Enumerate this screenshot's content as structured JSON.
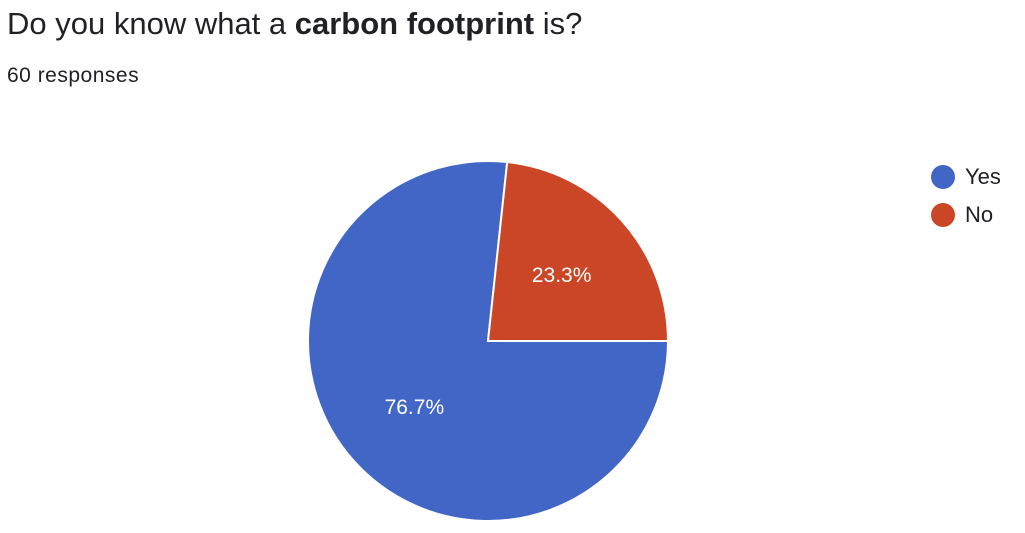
{
  "header": {
    "title_prefix": "Do you know what a ",
    "title_bold": "carbon footprint",
    "title_suffix": " is?",
    "responses": "60 responses"
  },
  "colors": {
    "yes": "#4166C6",
    "no": "#CB4627"
  },
  "chart_data": {
    "type": "pie",
    "title": "Do you know what a carbon footprint is?",
    "categories": [
      "Yes",
      "No"
    ],
    "values": [
      76.7,
      23.3
    ],
    "labels": [
      "76.7%",
      "23.3%"
    ],
    "colors": [
      "#4166C6",
      "#CB4627"
    ],
    "legend_position": "right"
  }
}
